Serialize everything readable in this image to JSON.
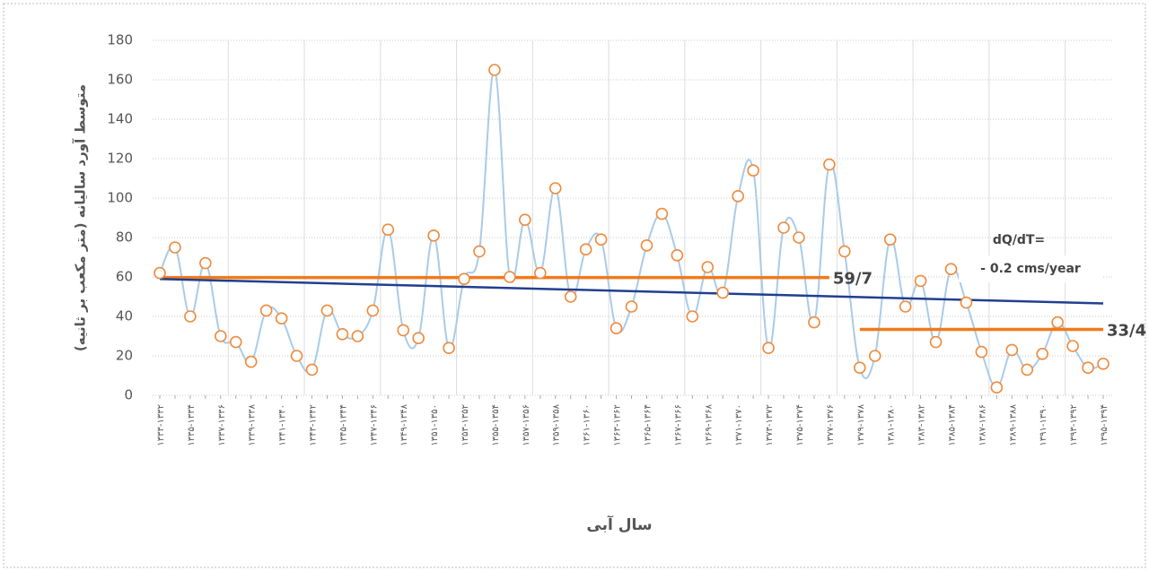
{
  "chart_data": {
    "type": "line",
    "y_label": "متوسط آورد سالیانه (متر مکعب بر ثانیه)",
    "x_label": "سال آبی",
    "categories": [
      "۱۳۳۳-۱۳۳۲",
      null,
      "۱۳۳۵-۱۳۳۴",
      null,
      "۱۳۳۷-۱۳۳۶",
      null,
      "۱۳۳۹-۱۳۳۸",
      null,
      "۱۳۴۱-۱۳۴۰",
      null,
      "۱۳۴۳-۱۳۴۲",
      null,
      "۱۳۴۵-۱۳۴۴",
      null,
      "۱۳۴۷-۱۳۴۶",
      null,
      "۱۳۴۹-۱۳۴۸",
      null,
      "۱۳۵۱-۱۳۵۰",
      null,
      "۱۳۵۳-۱۳۵۲",
      null,
      "۱۳۵۵-۱۳۵۴",
      null,
      "۱۳۵۷-۱۳۵۶",
      null,
      "۱۳۵۹-۱۳۵۸",
      null,
      "۱۳۶۱-۱۳۶۰",
      null,
      "۱۳۶۳-۱۳۶۲",
      null,
      "۱۳۶۵-۱۳۶۴",
      null,
      "۱۳۶۷-۱۳۶۶",
      null,
      "۱۳۶۹-۱۳۶۸",
      null,
      "۱۳۷۱-۱۳۷۰",
      null,
      "۱۳۷۳-۱۳۷۲",
      null,
      "۱۳۷۵-۱۳۷۴",
      null,
      "۱۳۷۷-۱۳۷۶",
      null,
      "۱۳۷۹-۱۳۷۸",
      null,
      "۱۳۸۱-۱۳۸۰",
      null,
      "۱۳۸۳-۱۳۸۲",
      null,
      "۱۳۸۵-۱۳۸۴",
      null,
      "۱۳۸۷-۱۳۸۶",
      null,
      "۱۳۸۹-۱۳۸۸",
      null,
      "۱۳۹۱-۱۳۹۰",
      null,
      "۱۳۹۳-۱۳۹۲",
      null,
      "۱۳۹۵-۱۳۹۴"
    ],
    "series": [
      {
        "color": "#a9cbe8",
        "marker_color": "#f08a3c",
        "values": [
          62,
          75,
          40,
          67,
          30,
          27,
          17,
          43,
          39,
          20,
          13,
          43,
          31,
          30,
          43,
          84,
          33,
          29,
          81,
          24,
          59,
          73,
          165,
          60,
          89,
          62,
          105,
          50,
          74,
          79,
          34,
          45,
          76,
          92,
          71,
          40,
          65,
          52,
          101,
          114,
          24,
          85,
          80,
          37,
          117,
          73,
          14,
          20,
          79,
          45,
          58,
          27,
          64,
          47,
          22,
          4,
          23,
          13,
          21,
          37,
          25,
          14,
          16
        ]
      }
    ],
    "mean_lines": [
      {
        "label": "59/7",
        "value": 59.7,
        "from": 0,
        "to": 44,
        "color": "#f07a1b"
      },
      {
        "label": "33/4",
        "value": 33.4,
        "from": 46,
        "to": 62,
        "color": "#f07a1b"
      }
    ],
    "trend": {
      "start": 59,
      "end": 46.6,
      "color": "#203f8f",
      "label": "dQ/dT=",
      "label2": "- 0.2 cms/year"
    },
    "ylim": [
      0,
      180
    ],
    "yticks": [
      0,
      20,
      40,
      60,
      80,
      100,
      120,
      140,
      160,
      180
    ],
    "grid": true
  }
}
